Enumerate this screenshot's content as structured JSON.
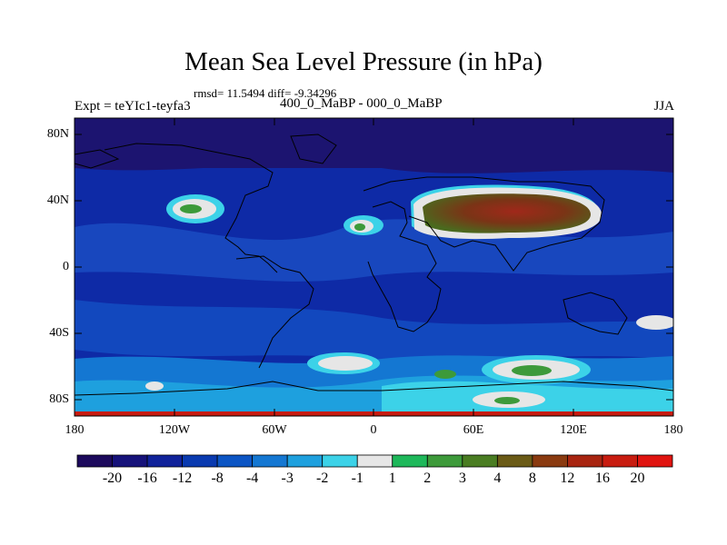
{
  "header": {
    "title": "Mean Sea Level Pressure (in hPa)",
    "stats": "rmsd= 11.5494 diff= -9.34296",
    "experiment": "Expt = teYIc1-teyfa3",
    "comparison": "400_0_MaBP - 000_0_MaBP",
    "season": "JJA"
  },
  "axes": {
    "lat_ticks": [
      "80N",
      "40N",
      "0",
      "40S",
      "80S"
    ],
    "lon_ticks": [
      "180",
      "120W",
      "60W",
      "0",
      "60E",
      "120E",
      "180"
    ]
  },
  "colorbar": {
    "labels": [
      "-20",
      "-16",
      "-12",
      "-8",
      "-4",
      "-3",
      "-2",
      "-1",
      "1",
      "2",
      "3",
      "4",
      "8",
      "12",
      "16",
      "20"
    ],
    "colors": [
      "#1c0a5c",
      "#16127a",
      "#10229a",
      "#0a3ab0",
      "#0c55c4",
      "#1477d2",
      "#1ea0de",
      "#3cd2e8",
      "#e6e6e6",
      "#1eb85a",
      "#3d9a3a",
      "#4a7d22",
      "#6a5a16",
      "#8a3a10",
      "#a82410",
      "#c81c10",
      "#e01410"
    ]
  },
  "colors": {
    "ocean_base": "#0e2aa6",
    "polar_dark": "#1c1470",
    "high_core": "#8a2e14",
    "land_outline": "#000000"
  }
}
